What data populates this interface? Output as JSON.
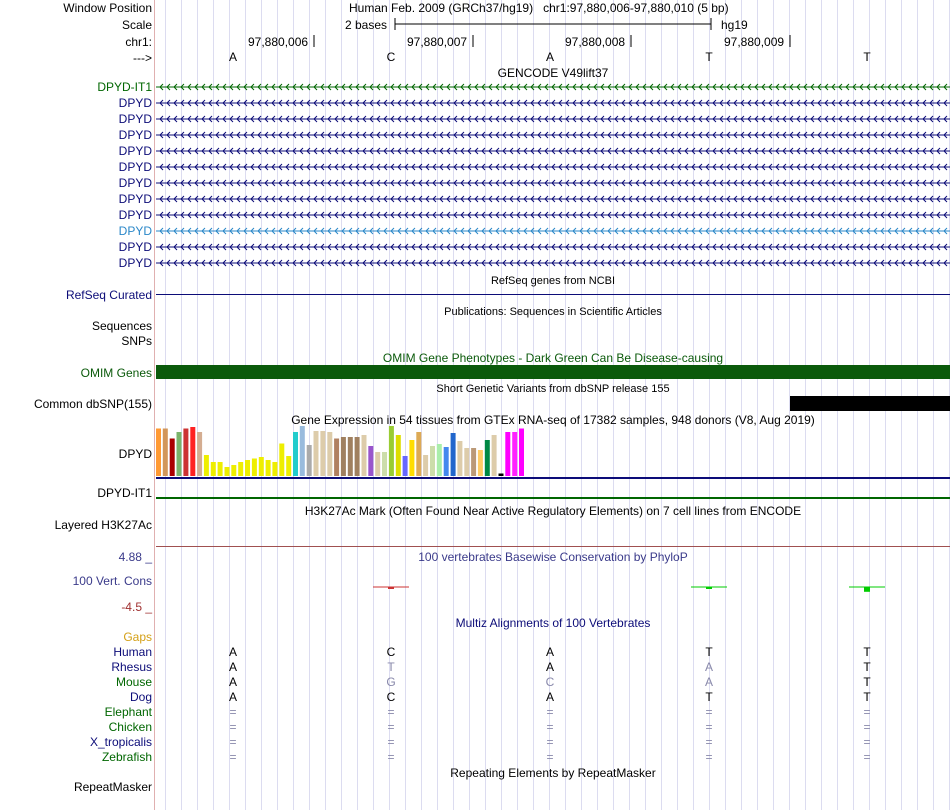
{
  "header": {
    "window_position_label": "Window Position",
    "scale_label": "Scale",
    "chrom_label": "chr1:",
    "strand_label": "--->",
    "assembly_text": "Human Feb. 2009 (GRCh37/hg19)   chr1:97,880,006-97,880,010 (5 bp)",
    "scale_text": "2 bases",
    "scale_db": "hg19",
    "positions": [
      "97,880,006",
      "97,880,007",
      "97,880,008",
      "97,880,009"
    ],
    "bases": [
      "A",
      "C",
      "A",
      "T",
      "T"
    ]
  },
  "gencode": {
    "title": "GENCODE V49lift37",
    "genes": [
      {
        "name": "DPYD-IT1",
        "color": "#006600"
      },
      {
        "name": "DPYD",
        "color": "#0c0c78"
      },
      {
        "name": "DPYD",
        "color": "#0c0c78"
      },
      {
        "name": "DPYD",
        "color": "#0c0c78"
      },
      {
        "name": "DPYD",
        "color": "#0c0c78"
      },
      {
        "name": "DPYD",
        "color": "#0c0c78"
      },
      {
        "name": "DPYD",
        "color": "#0c0c78"
      },
      {
        "name": "DPYD",
        "color": "#0c0c78"
      },
      {
        "name": "DPYD",
        "color": "#0c0c78"
      },
      {
        "name": "DPYD",
        "color": "#2a87c8"
      },
      {
        "name": "DPYD",
        "color": "#0c0c78"
      },
      {
        "name": "DPYD",
        "color": "#0c0c78"
      }
    ]
  },
  "refseq": {
    "title": "RefSeq genes from NCBI",
    "label": "RefSeq Curated",
    "color": "#0c0c78"
  },
  "publications": {
    "title": "Publications: Sequences in Scientific Articles",
    "label1": "Sequences",
    "label2": "SNPs"
  },
  "omim": {
    "title": "OMIM Gene Phenotypes - Dark Green Can Be Disease-causing",
    "label": "OMIM Genes",
    "color": "#0b5a0b"
  },
  "dbsnp": {
    "title": "Short Genetic Variants from dbSNP release 155",
    "label": "Common dbSNP(155)"
  },
  "gtex": {
    "title": "Gene Expression in 54 tissues from GTEx RNA-seq of 17382 samples, 948 donors (V8, Aug 2019)",
    "label1": "DPYD",
    "label2": "DPYD-IT1",
    "bar_values": [
      0.95,
      0.95,
      0.75,
      0.88,
      0.95,
      0.98,
      0.88,
      0.42,
      0.28,
      0.28,
      0.18,
      0.22,
      0.28,
      0.32,
      0.35,
      0.38,
      0.32,
      0.28,
      0.65,
      0.4,
      0.88,
      1.0,
      0.62,
      0.9,
      0.9,
      0.88,
      0.75,
      0.78,
      0.78,
      0.78,
      0.82,
      0.6,
      0.48,
      0.48,
      1.0,
      0.82,
      0.4,
      0.72,
      0.88,
      0.42,
      0.6,
      0.64,
      0.58,
      0.86,
      0.7,
      0.56,
      0.56,
      0.52,
      0.72,
      0.82,
      0.05,
      0.88,
      0.88,
      0.95
    ],
    "bar_colors": [
      "#ff9933",
      "#d2965a",
      "#aa0000",
      "#7ab36a",
      "#cc3333",
      "#ff2222",
      "#d4ad91",
      "#eeee00",
      "#eeee00",
      "#eeee00",
      "#eeee00",
      "#eeee00",
      "#eeee00",
      "#eeee00",
      "#eeee00",
      "#eeee00",
      "#eeee00",
      "#eeee00",
      "#eeee00",
      "#eeee00",
      "#22cccc",
      "#99bbdd",
      "#aaaaaa",
      "#ddccaa",
      "#ddccaa",
      "#ddccaa",
      "#b08060",
      "#a08060",
      "#a08060",
      "#a08060",
      "#ddccaa",
      "#9955cc",
      "#ddccaa",
      "#ccddaa",
      "#99cc33",
      "#dddd00",
      "#6666ff",
      "#ffdd00",
      "#ddaa55",
      "#ddccaa",
      "#ccddaa",
      "#aaeeaa",
      "#4488ee",
      "#2266cc",
      "#ddccaa",
      "#ddccaa",
      "#bb9977",
      "#ffcc66",
      "#008844",
      "#ddccaa",
      "#000000",
      "#ff00ff",
      "#ff22ff",
      "#ff00ff"
    ]
  },
  "h3k27ac": {
    "title": "H3K27Ac Mark (Often Found Near Active Regulatory Elements) on 7 cell lines from ENCODE",
    "label": "Layered H3K27Ac"
  },
  "phylop": {
    "title": "100 vertebrates Basewise Conservation by PhyloP",
    "label": "100 Vert. Cons",
    "max": "4.88 _",
    "min": "-4.5 _",
    "values": [
      0,
      -0.1,
      0,
      -0.5,
      -1.2
    ],
    "color_pos": "#3333cc",
    "color_cons": "#00cc00",
    "color_neg": "#cc3333"
  },
  "multiz": {
    "title": "Multiz Alignments of 100 Vertebrates",
    "gaps_label": "Gaps",
    "species": [
      {
        "name": "Human",
        "color": "#0c0c78",
        "bases": [
          "A",
          "C",
          "A",
          "T",
          "T"
        ],
        "match": [
          true,
          true,
          true,
          true,
          true
        ]
      },
      {
        "name": "Rhesus",
        "color": "#0c0c78",
        "bases": [
          "A",
          "T",
          "A",
          "A",
          "T"
        ],
        "match": [
          true,
          false,
          true,
          false,
          true
        ]
      },
      {
        "name": "Mouse",
        "color": "#006600",
        "bases": [
          "A",
          "G",
          "C",
          "A",
          "T"
        ],
        "match": [
          true,
          false,
          false,
          false,
          true
        ]
      },
      {
        "name": "Dog",
        "color": "#0c0c78",
        "bases": [
          "A",
          "C",
          "A",
          "T",
          "T"
        ],
        "match": [
          true,
          true,
          true,
          true,
          true
        ]
      },
      {
        "name": "Elephant",
        "color": "#006600",
        "bases": [
          "=",
          "=",
          "=",
          "=",
          "="
        ],
        "match": [
          false,
          false,
          false,
          false,
          false
        ]
      },
      {
        "name": "Chicken",
        "color": "#006600",
        "bases": [
          "=",
          "=",
          "=",
          "=",
          "="
        ],
        "match": [
          false,
          false,
          false,
          false,
          false
        ]
      },
      {
        "name": "X_tropicalis",
        "color": "#0c0c78",
        "bases": [
          "=",
          "=",
          "=",
          "=",
          "="
        ],
        "match": [
          false,
          false,
          false,
          false,
          false
        ]
      },
      {
        "name": "Zebrafish",
        "color": "#006600",
        "bases": [
          "=",
          "=",
          "=",
          "=",
          "="
        ],
        "match": [
          false,
          false,
          false,
          false,
          false
        ]
      }
    ]
  },
  "repeatmasker": {
    "title": "Repeating Elements by RepeatMasker",
    "label": "RepeatMasker"
  }
}
